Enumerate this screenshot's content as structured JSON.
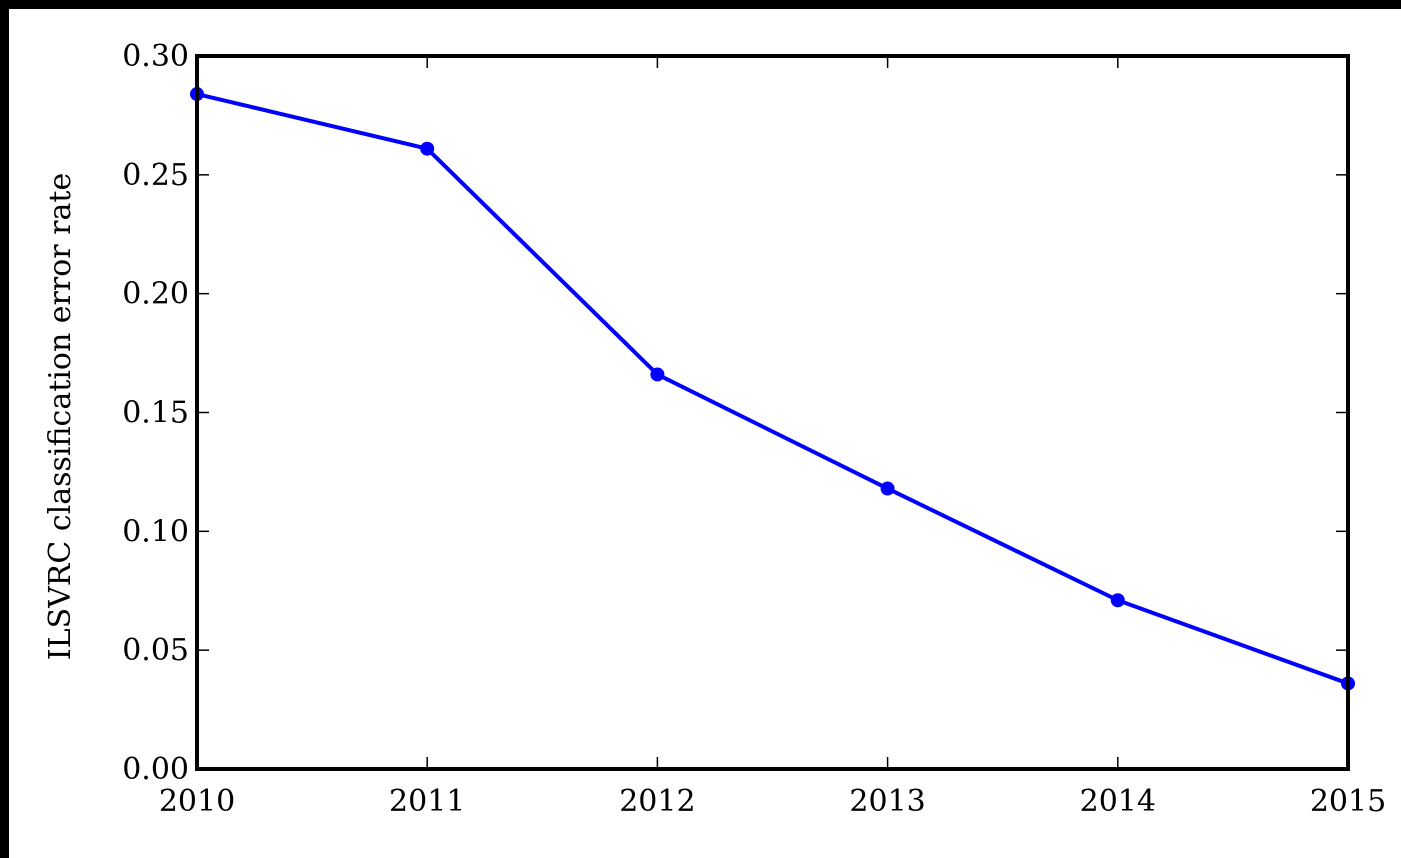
{
  "chart_data": {
    "type": "line",
    "title": "",
    "xlabel": "",
    "ylabel": "ILSVRC classification error rate",
    "xlim": [
      2010,
      2015
    ],
    "ylim": [
      0.0,
      0.3
    ],
    "x_ticks": [
      "2010",
      "2011",
      "2012",
      "2013",
      "2014",
      "2015"
    ],
    "y_ticks": [
      "0.00",
      "0.05",
      "0.10",
      "0.15",
      "0.20",
      "0.25",
      "0.30"
    ],
    "grid": false,
    "series": [
      {
        "color": "#0000ff",
        "x": [
          2010,
          2011,
          2012,
          2013,
          2014,
          2015
        ],
        "y": [
          0.284,
          0.261,
          0.166,
          0.118,
          0.071,
          0.036
        ]
      }
    ]
  }
}
